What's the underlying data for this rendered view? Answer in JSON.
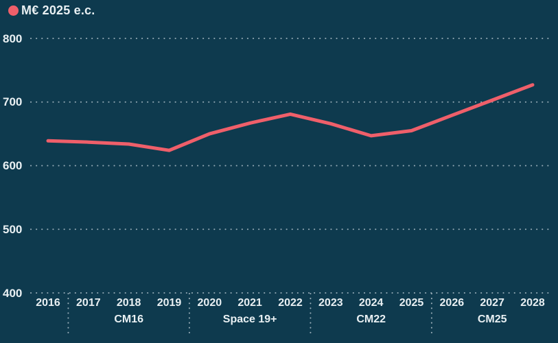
{
  "legend": {
    "label": "M€ 2025 e.c."
  },
  "colors": {
    "background": "#0e3a4e",
    "line": "#ef5f6a",
    "text": "#e9f0f3",
    "grid": "#96abb6"
  },
  "chart_data": {
    "type": "line",
    "title": "",
    "legend_position": "top-left",
    "grid": "dotted-horizontal",
    "series": [
      {
        "name": "M€ 2025 e.c.",
        "x": [
          2016,
          2017,
          2018,
          2019,
          2020,
          2021,
          2022,
          2023,
          2024,
          2025,
          2026,
          2027,
          2028
        ],
        "values": [
          639,
          637,
          634,
          624,
          650,
          667,
          681,
          666,
          647,
          655,
          679,
          703,
          727
        ]
      }
    ],
    "xlabel": "",
    "ylabel": "",
    "y_ticks": [
      400,
      500,
      600,
      700,
      800
    ],
    "ylim": [
      400,
      800
    ],
    "x_groups": [
      {
        "label": "CM16",
        "years": [
          2017,
          2018,
          2019
        ]
      },
      {
        "label": "Space 19+",
        "years": [
          2020,
          2021,
          2022
        ]
      },
      {
        "label": "CM22",
        "years": [
          2023,
          2024,
          2025
        ]
      },
      {
        "label": "CM25",
        "years": [
          2026,
          2027,
          2028
        ]
      }
    ]
  }
}
